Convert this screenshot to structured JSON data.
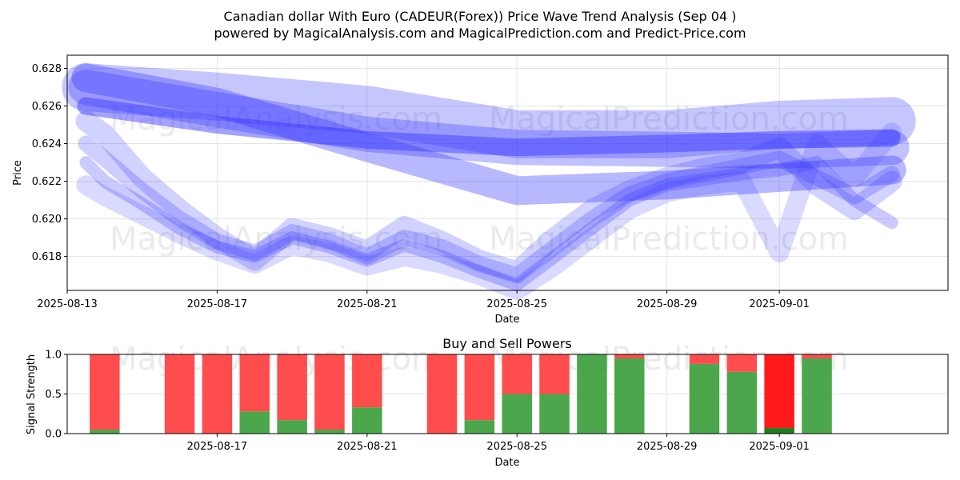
{
  "chart_data": [
    {
      "type": "line",
      "title_line1": "Canadian dollar With Euro (CADEUR(Forex)) Price Wave Trend Analysis (Sep 04 )",
      "title_line2": "powered by MagicalAnalysis.com and MagicalPrediction.com and Predict-Price.com",
      "xlabel": "Date",
      "ylabel": "Price",
      "ylim": [
        0.6162,
        0.6287
      ],
      "xlim": [
        "2025-08-13",
        "2025-09-05T12:00"
      ],
      "x_ticks": [
        "2025-08-13",
        "2025-08-17",
        "2025-08-21",
        "2025-08-25",
        "2025-08-29",
        "2025-09-01"
      ],
      "y_ticks": [
        0.618,
        0.62,
        0.622,
        0.624,
        0.626,
        0.628
      ],
      "grid": true,
      "watermarks": [
        "MagicalAnalysis.com",
        "MagicalPrediction.com"
      ],
      "series": [
        {
          "name": "wave-long-a",
          "dates": [
            "2025-08-13T12:00",
            "2025-08-17",
            "2025-08-21",
            "2025-08-25",
            "2025-08-29",
            "2025-09-01",
            "2025-09-04"
          ],
          "values": [
            0.627,
            0.6265,
            0.6258,
            0.6245,
            0.6245,
            0.625,
            0.6252
          ]
        },
        {
          "name": "wave-long-b",
          "dates": [
            "2025-08-13T12:00",
            "2025-08-17",
            "2025-08-21",
            "2025-08-25",
            "2025-08-29",
            "2025-09-01",
            "2025-09-04"
          ],
          "values": [
            0.627,
            0.6258,
            0.6245,
            0.6238,
            0.6237,
            0.6236,
            0.6238
          ]
        },
        {
          "name": "wave-long-c",
          "dates": [
            "2025-08-13T12:00",
            "2025-08-17",
            "2025-08-21",
            "2025-08-25",
            "2025-08-29",
            "2025-09-01",
            "2025-09-04"
          ],
          "values": [
            0.6275,
            0.6262,
            0.6238,
            0.6215,
            0.6218,
            0.6222,
            0.6226
          ]
        },
        {
          "name": "wave-long-d",
          "dates": [
            "2025-08-13T12:00",
            "2025-08-17",
            "2025-08-21",
            "2025-08-25",
            "2025-08-29",
            "2025-09-01",
            "2025-09-04"
          ],
          "values": [
            0.626,
            0.625,
            0.6242,
            0.6238,
            0.624,
            0.6242,
            0.6243
          ]
        },
        {
          "name": "wave-short-a",
          "dates": [
            "2025-08-13T12:00",
            "2025-08-14",
            "2025-08-15",
            "2025-08-16",
            "2025-08-17",
            "2025-08-18",
            "2025-08-19",
            "2025-08-20",
            "2025-08-21",
            "2025-08-22",
            "2025-08-23",
            "2025-08-24",
            "2025-08-25",
            "2025-08-26",
            "2025-08-27",
            "2025-08-28",
            "2025-08-29",
            "2025-08-30",
            "2025-08-31",
            "2025-09-01",
            "2025-09-02",
            "2025-09-03",
            "2025-09-04"
          ],
          "values": [
            0.6252,
            0.6245,
            0.6222,
            0.6205,
            0.619,
            0.6178,
            0.6195,
            0.619,
            0.6183,
            0.6196,
            0.6188,
            0.6178,
            0.6172,
            0.619,
            0.6205,
            0.6215,
            0.6222,
            0.6227,
            0.623,
            0.6238,
            0.6218,
            0.6205,
            0.622
          ]
        },
        {
          "name": "wave-short-b",
          "dates": [
            "2025-08-13T12:00",
            "2025-08-14",
            "2025-08-15",
            "2025-08-16",
            "2025-08-17",
            "2025-08-18",
            "2025-08-19",
            "2025-08-20",
            "2025-08-21",
            "2025-08-22",
            "2025-08-23",
            "2025-08-24",
            "2025-08-25",
            "2025-08-26",
            "2025-08-27",
            "2025-08-28",
            "2025-08-29",
            "2025-08-30",
            "2025-08-31",
            "2025-09-01",
            "2025-09-02",
            "2025-09-03",
            "2025-09-04"
          ],
          "values": [
            0.624,
            0.6232,
            0.6215,
            0.62,
            0.6188,
            0.6182,
            0.6193,
            0.6188,
            0.618,
            0.619,
            0.6185,
            0.6176,
            0.617,
            0.6185,
            0.62,
            0.6213,
            0.622,
            0.6224,
            0.6228,
            0.6232,
            0.6222,
            0.6212,
            0.6224
          ]
        },
        {
          "name": "wave-short-c",
          "dates": [
            "2025-08-13T12:00",
            "2025-08-14",
            "2025-08-15",
            "2025-08-16",
            "2025-08-17",
            "2025-08-18",
            "2025-08-19",
            "2025-08-20",
            "2025-08-21",
            "2025-08-22",
            "2025-08-23",
            "2025-08-24",
            "2025-08-25",
            "2025-08-26",
            "2025-08-27",
            "2025-08-28",
            "2025-08-29",
            "2025-08-30",
            "2025-08-31",
            "2025-09-01",
            "2025-09-02",
            "2025-09-03",
            "2025-09-04"
          ],
          "values": [
            0.623,
            0.622,
            0.6208,
            0.6195,
            0.6185,
            0.618,
            0.619,
            0.6185,
            0.6178,
            0.6186,
            0.618,
            0.6172,
            0.6165,
            0.618,
            0.6195,
            0.621,
            0.6218,
            0.6221,
            0.6224,
            0.6226,
            0.623,
            0.621,
            0.6198
          ]
        },
        {
          "name": "wave-short-d",
          "dates": [
            "2025-08-13T12:00",
            "2025-08-14",
            "2025-08-15",
            "2025-08-16",
            "2025-08-17",
            "2025-08-18",
            "2025-08-19",
            "2025-08-20",
            "2025-08-21",
            "2025-08-22",
            "2025-08-23",
            "2025-08-24",
            "2025-08-25",
            "2025-08-26",
            "2025-08-27",
            "2025-08-28",
            "2025-08-29",
            "2025-08-30",
            "2025-08-31",
            "2025-09-01",
            "2025-09-02",
            "2025-09-03",
            "2025-09-04"
          ],
          "values": [
            0.6218,
            0.6212,
            0.6202,
            0.6192,
            0.6183,
            0.6176,
            0.6186,
            0.6182,
            0.6175,
            0.618,
            0.6176,
            0.617,
            0.6162,
            0.6175,
            0.619,
            0.6205,
            0.6214,
            0.6218,
            0.622,
            0.6182,
            0.624,
            0.6222,
            0.6246
          ]
        }
      ]
    },
    {
      "type": "bar",
      "title": "Buy and Sell Powers",
      "xlabel": "Date",
      "ylabel": "Signal Strength",
      "ylim": [
        0,
        1
      ],
      "y_ticks": [
        "0.0",
        "0.5",
        "1.0"
      ],
      "x_ticks": [
        "2025-08-17",
        "2025-08-21",
        "2025-08-25",
        "2025-08-29",
        "2025-09-01"
      ],
      "dates": [
        "2025-08-14",
        "2025-08-16",
        "2025-08-17",
        "2025-08-18",
        "2025-08-19",
        "2025-08-20",
        "2025-08-21",
        "2025-08-23",
        "2025-08-24",
        "2025-08-25",
        "2025-08-26",
        "2025-08-27",
        "2025-08-28",
        "2025-08-30",
        "2025-08-31",
        "2025-09-01",
        "2025-09-02"
      ],
      "buy": [
        0.05,
        0.0,
        0.0,
        0.28,
        0.17,
        0.05,
        0.33,
        0.0,
        0.17,
        0.5,
        0.5,
        1.0,
        0.95,
        0.88,
        0.78,
        0.07,
        0.95
      ],
      "highlight_index": 15,
      "colors": {
        "buy": "#4ca64c",
        "sell": "#ff4d4d",
        "buy_strong": "#1e7d1e",
        "sell_strong": "#ff1a1a"
      }
    }
  ]
}
